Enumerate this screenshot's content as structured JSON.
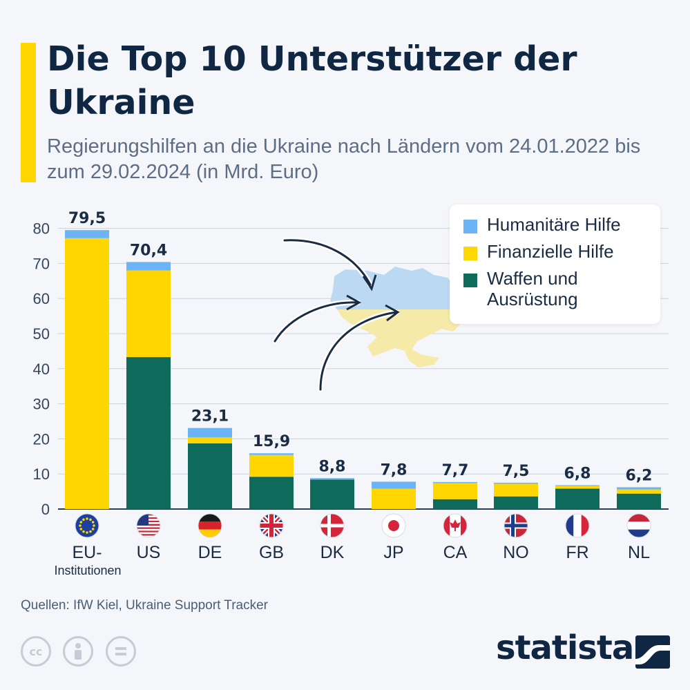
{
  "header": {
    "title": "Die Top 10 Unterstützer der Ukraine",
    "subtitle": "Regierungshilfen an die Ukraine nach Ländern vom 24.01.2022 bis zum 29.02.2024 (in Mrd. Euro)"
  },
  "legend": {
    "items": [
      {
        "label": "Humanitäre Hilfe",
        "color": "#6cb4f5"
      },
      {
        "label": "Finanzielle Hilfe",
        "color": "#ffd600"
      },
      {
        "label": "Waffen und Ausrüstung",
        "color": "#0e6b5c"
      }
    ]
  },
  "footer": {
    "source": "Quellen: IfW Kiel, Ukraine Support Tracker",
    "brand": "statista"
  },
  "icons": [
    "cc-icon",
    "person-icon",
    "equals-icon",
    "statista-logo-icon",
    "ukraine-map-icon",
    "arrow-icon"
  ],
  "chart_data": {
    "type": "bar",
    "stacked": true,
    "categories": [
      "EU-\nInstitutionen",
      "US",
      "DE",
      "GB",
      "DK",
      "JP",
      "CA",
      "NO",
      "FR",
      "NL"
    ],
    "flags": [
      "eu",
      "us",
      "de",
      "gb",
      "dk",
      "jp",
      "ca",
      "no",
      "fr",
      "nl"
    ],
    "totals": [
      "79,5",
      "70,4",
      "23,1",
      "15,9",
      "8,8",
      "7,8",
      "7,7",
      "7,5",
      "6,8",
      "6,2"
    ],
    "series": [
      {
        "name": "Waffen und Ausrüstung",
        "color": "#0e6b5c",
        "values": [
          0,
          43.3,
          18.7,
          9.2,
          8.4,
          0,
          2.8,
          3.6,
          5.8,
          4.4
        ]
      },
      {
        "name": "Finanzielle Hilfe",
        "color": "#ffd600",
        "values": [
          77.2,
          24.7,
          1.7,
          6.2,
          0,
          5.8,
          4.6,
          3.6,
          0.8,
          1.2
        ]
      },
      {
        "name": "Humanitäre Hilfe",
        "color": "#6cb4f5",
        "values": [
          2.3,
          2.4,
          2.7,
          0.5,
          0.4,
          2.0,
          0.3,
          0.3,
          0.2,
          0.6
        ]
      }
    ],
    "ylim": [
      0,
      80
    ],
    "yticks": [
      0,
      10,
      20,
      30,
      40,
      50,
      60,
      70,
      80
    ],
    "grid": true,
    "legend_position": "top-right"
  }
}
